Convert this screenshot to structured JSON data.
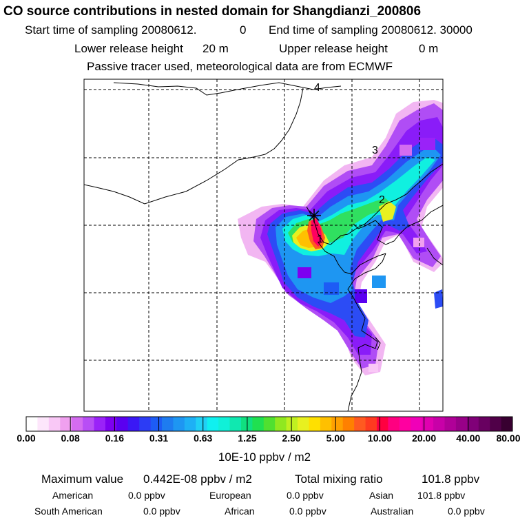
{
  "header": {
    "title": "CO  source contributions in nested domain for Shangdianzi_200806",
    "start_label": "Start time of sampling 20080612.",
    "start_value": "0",
    "end_label": "End time of sampling 20080612. 30000",
    "lower_label": "Lower release height",
    "lower_value": "20 m",
    "upper_label": "Upper release height",
    "upper_value": "0 m",
    "tracer_note": "Passive tracer used, meteorological data are from ECMWF"
  },
  "map": {
    "region_labels": [
      "1",
      "2",
      "3",
      "4"
    ],
    "marker": "receptor-star-icon"
  },
  "colorbar": {
    "labels": [
      "0.00",
      "0.08",
      "0.16",
      "0.31",
      "0.63",
      "1.25",
      "2.50",
      "5.00",
      "10.00",
      "20.00",
      "40.00",
      "80.00"
    ],
    "colors": [
      "#ffffff",
      "#fde6fb",
      "#f9c8f6",
      "#f0a0ef",
      "#d46cf0",
      "#b84ef5",
      "#9a22f8",
      "#7d00f0",
      "#5a00f0",
      "#3a18f5",
      "#2c3cf5",
      "#1d5cf5",
      "#1e7cf0",
      "#1e96f2",
      "#1eb0f5",
      "#20d0f5",
      "#10f0f0",
      "#10f0d8",
      "#10e8b0",
      "#10e080",
      "#20e050",
      "#50e030",
      "#90e820",
      "#c0f020",
      "#e8f020",
      "#ffe000",
      "#ffc000",
      "#ffa000",
      "#ff8000",
      "#ff5a20",
      "#ff3a20",
      "#ff0040",
      "#ff0080",
      "#ff00a0",
      "#f000b8",
      "#e000b0",
      "#c800a8",
      "#b00098",
      "#980088",
      "#800078",
      "#680060",
      "#500048",
      "#380030"
    ],
    "units": "10E-10 ppbv / m2"
  },
  "stats": {
    "max_label": "Maximum value",
    "max_value": "0.442E-08 ppbv / m2",
    "total_label": "Total mixing ratio",
    "total_value": "101.8 ppbv",
    "sources": [
      {
        "name": "American",
        "value": "0.0 ppbv"
      },
      {
        "name": "European",
        "value": "0.0 ppbv"
      },
      {
        "name": "Asian",
        "value": "101.8 ppbv"
      },
      {
        "name": "South American",
        "value": "0.0 ppbv"
      },
      {
        "name": "African",
        "value": "0.0 ppbv"
      },
      {
        "name": "Australian",
        "value": "0.0 ppbv"
      }
    ]
  }
}
